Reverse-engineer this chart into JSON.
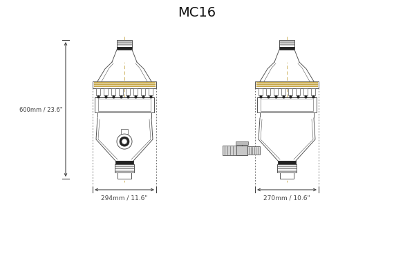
{
  "title": "MC16",
  "title_fontsize": 14,
  "bg_color": "#ffffff",
  "line_color": "#555555",
  "dark_color": "#222222",
  "gold_color": "#c8a84b",
  "dim_color": "#444444",
  "dim_height_label": "600mm / 23.6\"",
  "dim_width1_label": "294mm / 11.6\"",
  "dim_width2_label": "270mm / 10.6\""
}
